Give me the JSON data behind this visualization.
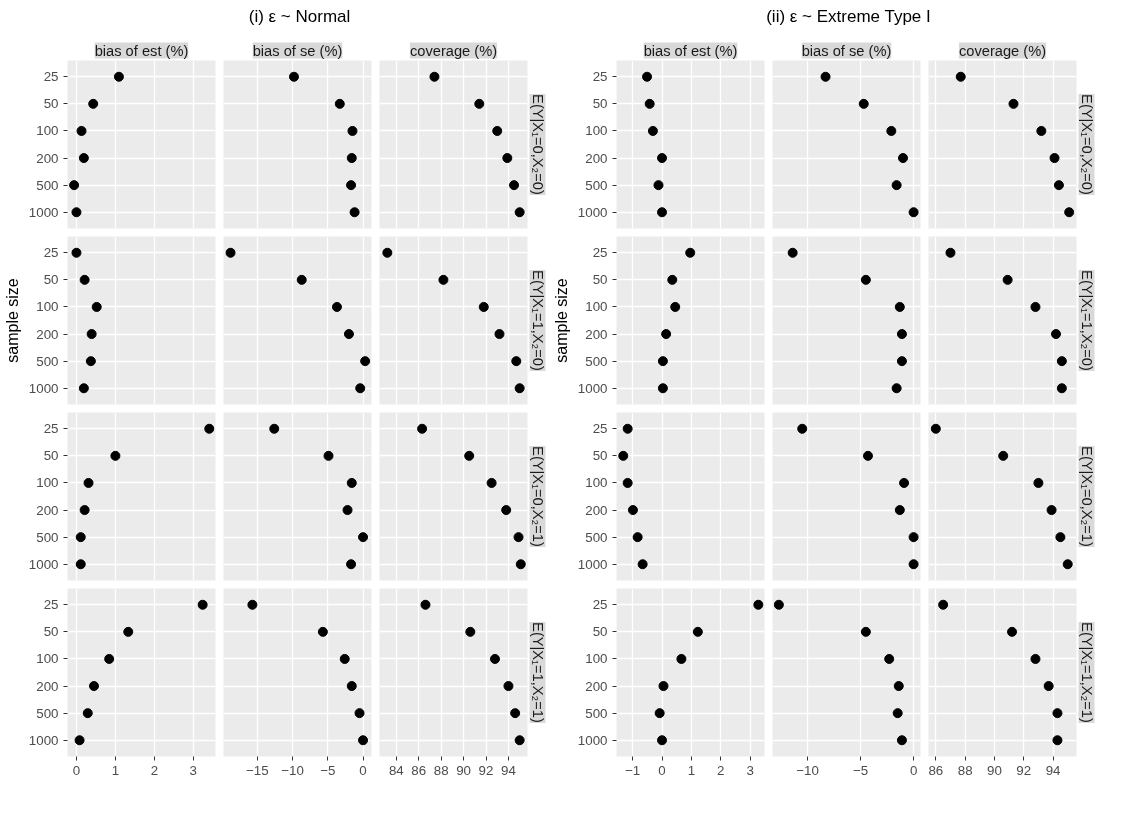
{
  "chart_data": [
    {
      "type": "scatter",
      "orientation": "horizontal",
      "annotations": [
        "(i) ε ~ Normal"
      ],
      "title": "bias of est (%)",
      "categories": [
        "25",
        "50",
        "100",
        "200",
        "500",
        "1000"
      ],
      "values": [
        1.09,
        0.43,
        0.13,
        0.19,
        -0.06,
        0.0
      ],
      "color": "#000000",
      "marker": "circle",
      "xlim": [
        -0.23,
        3.57
      ],
      "xticks": [
        0,
        1,
        2,
        3
      ],
      "grid": true,
      "tick_labels": "y"
    },
    {
      "type": "scatter",
      "orientation": "horizontal",
      "title": "bias of se (%)",
      "categories": [
        "25",
        "50",
        "100",
        "200",
        "500",
        "1000"
      ],
      "values": [
        -9.8,
        -3.3,
        -1.5,
        -1.6,
        -1.7,
        -1.2
      ],
      "color": "#000000",
      "marker": "circle",
      "xlim": [
        -19.8,
        1.2
      ],
      "xticks": [
        -15,
        -10,
        -5,
        0
      ],
      "grid": true,
      "tick_labels": false
    },
    {
      "type": "scatter",
      "orientation": "horizontal",
      "title": "coverage (%)",
      "y2label": "E(Y|X₁=0,X₂=0)",
      "categories": [
        "25",
        "50",
        "100",
        "200",
        "500",
        "1000"
      ],
      "values": [
        87.4,
        91.4,
        93.0,
        93.9,
        94.5,
        95.0
      ],
      "color": "#000000",
      "marker": "circle",
      "xlim": [
        82.5,
        95.7
      ],
      "xticks": [
        84,
        86,
        88,
        90,
        92,
        94
      ],
      "grid": true,
      "tick_labels": false
    },
    {
      "type": "scatter",
      "orientation": "horizontal",
      "ylabel": "sample size",
      "categories": [
        "25",
        "50",
        "100",
        "200",
        "500",
        "1000"
      ],
      "values": [
        0.0,
        0.21,
        0.52,
        0.39,
        0.37,
        0.19
      ],
      "color": "#000000",
      "marker": "circle",
      "xlim": [
        -0.23,
        3.57
      ],
      "xticks": [
        0,
        1,
        2,
        3
      ],
      "grid": true,
      "tick_labels": "y"
    },
    {
      "type": "scatter",
      "orientation": "horizontal",
      "categories": [
        "25",
        "50",
        "100",
        "200",
        "500",
        "1000"
      ],
      "values": [
        -18.8,
        -8.7,
        -3.7,
        -2.0,
        0.3,
        -0.4
      ],
      "color": "#000000",
      "marker": "circle",
      "xlim": [
        -19.8,
        1.2
      ],
      "xticks": [
        -15,
        -10,
        -5,
        0
      ],
      "grid": true,
      "tick_labels": false
    },
    {
      "type": "scatter",
      "orientation": "horizontal",
      "y2label": "E(Y|X₁=1,X₂=0)",
      "categories": [
        "25",
        "50",
        "100",
        "200",
        "500",
        "1000"
      ],
      "values": [
        83.2,
        88.2,
        91.8,
        93.2,
        94.7,
        95.0
      ],
      "color": "#000000",
      "marker": "circle",
      "xlim": [
        82.5,
        95.7
      ],
      "xticks": [
        84,
        86,
        88,
        90,
        92,
        94
      ],
      "grid": true,
      "tick_labels": false
    },
    {
      "type": "scatter",
      "orientation": "horizontal",
      "categories": [
        "25",
        "50",
        "100",
        "200",
        "500",
        "1000"
      ],
      "values": [
        3.41,
        1.0,
        0.31,
        0.21,
        0.11,
        0.11
      ],
      "color": "#000000",
      "marker": "circle",
      "xlim": [
        -0.23,
        3.57
      ],
      "xticks": [
        0,
        1,
        2,
        3
      ],
      "grid": true,
      "tick_labels": "y"
    },
    {
      "type": "scatter",
      "orientation": "horizontal",
      "categories": [
        "25",
        "50",
        "100",
        "200",
        "500",
        "1000"
      ],
      "values": [
        -12.6,
        -4.9,
        -1.6,
        -2.2,
        0.0,
        -1.7
      ],
      "color": "#000000",
      "marker": "circle",
      "xlim": [
        -19.8,
        1.2
      ],
      "xticks": [
        -15,
        -10,
        -5,
        0
      ],
      "grid": true,
      "tick_labels": false
    },
    {
      "type": "scatter",
      "orientation": "horizontal",
      "y2label": "E(Y|X₁=0,X₂=1)",
      "categories": [
        "25",
        "50",
        "100",
        "200",
        "500",
        "1000"
      ],
      "values": [
        86.3,
        90.5,
        92.5,
        93.8,
        94.9,
        95.1
      ],
      "color": "#000000",
      "marker": "circle",
      "xlim": [
        82.5,
        95.7
      ],
      "xticks": [
        84,
        86,
        88,
        90,
        92,
        94
      ],
      "grid": true,
      "tick_labels": false
    },
    {
      "type": "scatter",
      "orientation": "horizontal",
      "categories": [
        "25",
        "50",
        "100",
        "200",
        "500",
        "1000"
      ],
      "values": [
        3.24,
        1.33,
        0.84,
        0.45,
        0.29,
        0.08
      ],
      "color": "#000000",
      "marker": "circle",
      "xlim": [
        -0.23,
        3.57
      ],
      "xticks": [
        0,
        1,
        2,
        3
      ],
      "grid": true
    },
    {
      "type": "scatter",
      "orientation": "horizontal",
      "categories": [
        "25",
        "50",
        "100",
        "200",
        "500",
        "1000"
      ],
      "values": [
        -15.7,
        -5.7,
        -2.6,
        -1.6,
        -0.5,
        0.0
      ],
      "color": "#000000",
      "marker": "circle",
      "xlim": [
        -19.8,
        1.2
      ],
      "xticks": [
        {
          "value": -15,
          "label": "−15"
        },
        {
          "value": -10,
          "label": "−10"
        },
        {
          "value": -5,
          "label": "−5"
        },
        0
      ],
      "grid": true,
      "tick_labels": "x"
    },
    {
      "type": "scatter",
      "orientation": "horizontal",
      "y2label": "E(Y|X₁=1,X₂=1)",
      "categories": [
        "25",
        "50",
        "100",
        "200",
        "500",
        "1000"
      ],
      "values": [
        86.6,
        90.6,
        92.8,
        94.0,
        94.6,
        95.0
      ],
      "color": "#000000",
      "marker": "circle",
      "xlim": [
        82.5,
        95.7
      ],
      "xticks": [
        84,
        86,
        88,
        90,
        92,
        94
      ],
      "grid": true,
      "tick_labels": "x"
    },
    {
      "type": "scatter",
      "orientation": "horizontal",
      "annotations": [
        "(ii) ε ~ Extreme Type I"
      ],
      "title": "bias of est (%)",
      "categories": [
        "25",
        "50",
        "100",
        "200",
        "500",
        "1000"
      ],
      "values": [
        -0.51,
        -0.42,
        -0.31,
        0.0,
        -0.12,
        0.0
      ],
      "color": "#000000",
      "marker": "circle",
      "xlim": [
        -1.55,
        3.49
      ],
      "xticks": [
        -1,
        0,
        1,
        2,
        3
      ],
      "grid": true,
      "tick_labels": "y"
    },
    {
      "type": "scatter",
      "orientation": "horizontal",
      "title": "bias of se (%)",
      "categories": [
        "25",
        "50",
        "100",
        "200",
        "500",
        "1000"
      ],
      "values": [
        -8.3,
        -4.7,
        -2.1,
        -1.0,
        -1.6,
        0.0
      ],
      "color": "#000000",
      "marker": "circle",
      "xlim": [
        -13.3,
        0.65
      ],
      "xticks": [
        -10,
        -5,
        0
      ],
      "grid": true,
      "tick_labels": false
    },
    {
      "type": "scatter",
      "orientation": "horizontal",
      "title": "coverage (%)",
      "y2label": "E(Y|X₁=0,X₂=0)",
      "categories": [
        "25",
        "50",
        "100",
        "200",
        "500",
        "1000"
      ],
      "values": [
        87.7,
        91.3,
        93.2,
        94.1,
        94.4,
        95.1
      ],
      "color": "#000000",
      "marker": "circle",
      "xlim": [
        85.5,
        95.6
      ],
      "xticks": [
        86,
        88,
        90,
        92,
        94
      ],
      "grid": true,
      "tick_labels": false
    },
    {
      "type": "scatter",
      "orientation": "horizontal",
      "ylabel": "sample size",
      "categories": [
        "25",
        "50",
        "100",
        "200",
        "500",
        "1000"
      ],
      "values": [
        0.96,
        0.35,
        0.45,
        0.14,
        0.03,
        0.03
      ],
      "color": "#000000",
      "marker": "circle",
      "xlim": [
        -1.55,
        3.49
      ],
      "xticks": [
        -1,
        0,
        1,
        2,
        3
      ],
      "grid": true,
      "tick_labels": "y"
    },
    {
      "type": "scatter",
      "orientation": "horizontal",
      "categories": [
        "25",
        "50",
        "100",
        "200",
        "500",
        "1000"
      ],
      "values": [
        -11.4,
        -4.5,
        -1.3,
        -1.1,
        -1.1,
        -1.6
      ],
      "color": "#000000",
      "marker": "circle",
      "xlim": [
        -13.3,
        0.65
      ],
      "xticks": [
        -10,
        -5,
        0
      ],
      "grid": true,
      "tick_labels": false
    },
    {
      "type": "scatter",
      "orientation": "horizontal",
      "y2label": "E(Y|X₁=1,X₂=0)",
      "categories": [
        "25",
        "50",
        "100",
        "200",
        "500",
        "1000"
      ],
      "values": [
        87.0,
        90.9,
        92.8,
        94.2,
        94.6,
        94.6
      ],
      "color": "#000000",
      "marker": "circle",
      "xlim": [
        85.5,
        95.6
      ],
      "xticks": [
        86,
        88,
        90,
        92,
        94
      ],
      "grid": true,
      "tick_labels": false
    },
    {
      "type": "scatter",
      "orientation": "horizontal",
      "categories": [
        "25",
        "50",
        "100",
        "200",
        "500",
        "1000"
      ],
      "values": [
        -1.17,
        -1.32,
        -1.17,
        -0.99,
        -0.83,
        -0.66
      ],
      "color": "#000000",
      "marker": "circle",
      "xlim": [
        -1.55,
        3.49
      ],
      "xticks": [
        -1,
        0,
        1,
        2,
        3
      ],
      "grid": true,
      "tick_labels": "y"
    },
    {
      "type": "scatter",
      "orientation": "horizontal",
      "categories": [
        "25",
        "50",
        "100",
        "200",
        "500",
        "1000"
      ],
      "values": [
        -10.5,
        -4.3,
        -0.9,
        -1.3,
        0.0,
        0.0
      ],
      "color": "#000000",
      "marker": "circle",
      "xlim": [
        -13.3,
        0.65
      ],
      "xticks": [
        -10,
        -5,
        0
      ],
      "grid": true,
      "tick_labels": false
    },
    {
      "type": "scatter",
      "orientation": "horizontal",
      "y2label": "E(Y|X₁=0,X₂=1)",
      "categories": [
        "25",
        "50",
        "100",
        "200",
        "500",
        "1000"
      ],
      "values": [
        86.0,
        90.6,
        93.0,
        93.9,
        94.5,
        95.0
      ],
      "color": "#000000",
      "marker": "circle",
      "xlim": [
        85.5,
        95.6
      ],
      "xticks": [
        86,
        88,
        90,
        92,
        94
      ],
      "grid": true,
      "tick_labels": false
    },
    {
      "type": "scatter",
      "orientation": "horizontal",
      "categories": [
        "25",
        "50",
        "100",
        "200",
        "500",
        "1000"
      ],
      "values": [
        3.28,
        1.22,
        0.66,
        0.05,
        -0.08,
        0.0
      ],
      "color": "#000000",
      "marker": "circle",
      "xlim": [
        -1.55,
        3.49
      ],
      "xticks": [
        {
          "value": -1,
          "label": "−1"
        },
        0,
        1,
        2,
        3
      ],
      "grid": true
    },
    {
      "type": "scatter",
      "orientation": "horizontal",
      "categories": [
        "25",
        "50",
        "100",
        "200",
        "500",
        "1000"
      ],
      "values": [
        -12.7,
        -4.5,
        -2.3,
        -1.4,
        -1.5,
        -1.1
      ],
      "color": "#000000",
      "marker": "circle",
      "xlim": [
        -13.3,
        0.65
      ],
      "xticks": [
        {
          "value": -10,
          "label": "−10"
        },
        {
          "value": -5,
          "label": "−5"
        },
        0
      ],
      "grid": true,
      "tick_labels": "x"
    },
    {
      "type": "scatter",
      "orientation": "horizontal",
      "y2label": "E(Y|X₁=1,X₂=1)",
      "categories": [
        "25",
        "50",
        "100",
        "200",
        "500",
        "1000"
      ],
      "values": [
        86.5,
        91.2,
        92.8,
        93.7,
        94.3,
        94.3
      ],
      "color": "#000000",
      "marker": "circle",
      "xlim": [
        85.5,
        95.6
      ],
      "xticks": [
        86,
        88,
        90,
        92,
        94
      ],
      "grid": true,
      "tick_labels": "x"
    }
  ]
}
